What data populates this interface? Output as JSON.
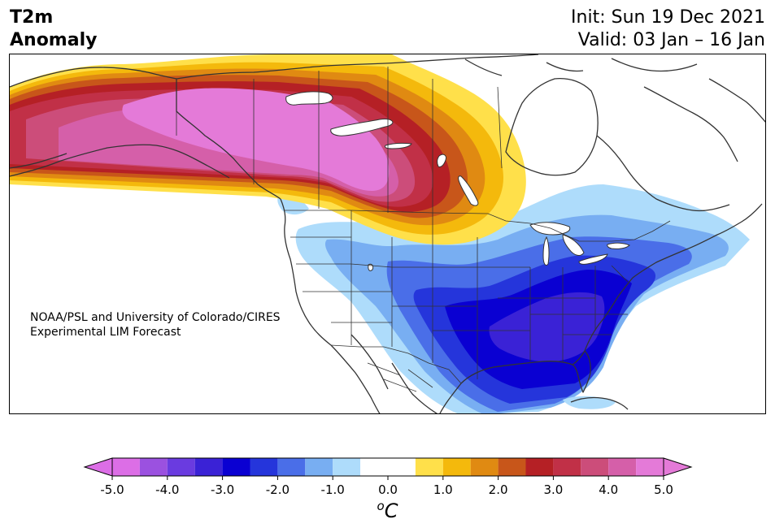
{
  "header": {
    "title_line1": "T2m",
    "title_line2": "Anomaly",
    "init_label": "Init: Sun 19 Dec 2021",
    "valid_label": "Valid: 03 Jan – 16 Jan"
  },
  "map": {
    "credit_line1": "NOAA/PSL and University of Colorado/CIRES",
    "credit_line2": "Experimental LIM Forecast",
    "region": "North America",
    "features": {
      "warm_anomaly": "Alaska, western Canada, northern Plains",
      "cold_anomaly": "south-central and southeastern United States"
    }
  },
  "colorbar": {
    "levels": [
      -5.0,
      -4.5,
      -4.0,
      -3.5,
      -3.0,
      -2.5,
      -2.0,
      -1.5,
      -1.0,
      -0.5,
      0.5,
      1.0,
      1.5,
      2.0,
      2.5,
      3.0,
      3.5,
      4.0,
      4.5,
      5.0
    ],
    "colors": [
      "#dc6ee6",
      "#9b51e0",
      "#6a3be0",
      "#3a22d6",
      "#0a00d2",
      "#2535db",
      "#4a6ee8",
      "#78aef2",
      "#aedcfb",
      "#ffffff",
      "#ffe04a",
      "#f4b90c",
      "#e08a12",
      "#c8561a",
      "#b52025",
      "#c13047",
      "#cc4d7a",
      "#d55fa9",
      "#e47ad8"
    ],
    "tick_labels": [
      "-5.0",
      "-4.0",
      "-3.0",
      "-2.0",
      "-1.0",
      "0.0",
      "1.0",
      "2.0",
      "3.0",
      "4.0",
      "5.0"
    ],
    "min_extend_color": "#dc6ee6",
    "max_extend_color": "#e47ad8",
    "unit_symbol": "o",
    "unit_letter": "C"
  }
}
